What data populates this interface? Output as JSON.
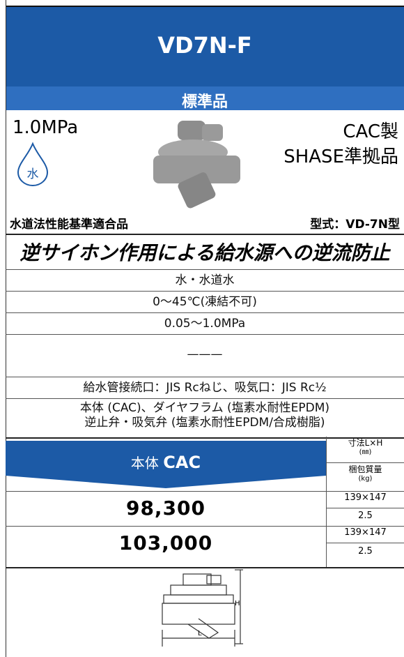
{
  "header": {
    "title": "VD7N-F",
    "subtitle": "標準品"
  },
  "product": {
    "pressure": "1.0MPa",
    "medium_icon": "水",
    "material": "CAC製",
    "standard": "SHASE準拠品",
    "certification": "水道法性能基準適合品",
    "model": "型式：VD-7N型"
  },
  "feature": "逆サイホン作用による給水源への逆流防止",
  "specs": [
    "水・水道水",
    "0〜45℃(凍結不可)",
    "0.05〜1.0MPa",
    "———",
    "給水管接続口：JIS Rcねじ、吸気口：JIS Rc½",
    [
      "本体 (CAC)、ダイヤフラム (塩素水耐性EPDM)",
      "逆止弁・吸気弁 (塩素水耐性EPDM/合成樹脂)"
    ]
  ],
  "price_table": {
    "header": {
      "label": "本体",
      "material": "CAC",
      "dim_label": "寸法L×H",
      "dim_unit": "(㎜)",
      "weight_label": "梱包質量",
      "weight_unit": "(kg)"
    },
    "rows": [
      {
        "price": "98,300",
        "dimensions": "139×147",
        "weight": "2.5"
      },
      {
        "price": "103,000",
        "dimensions": "139×147",
        "weight": "2.5"
      }
    ]
  },
  "diagram": {
    "h_label": "H",
    "l_label": "L"
  }
}
